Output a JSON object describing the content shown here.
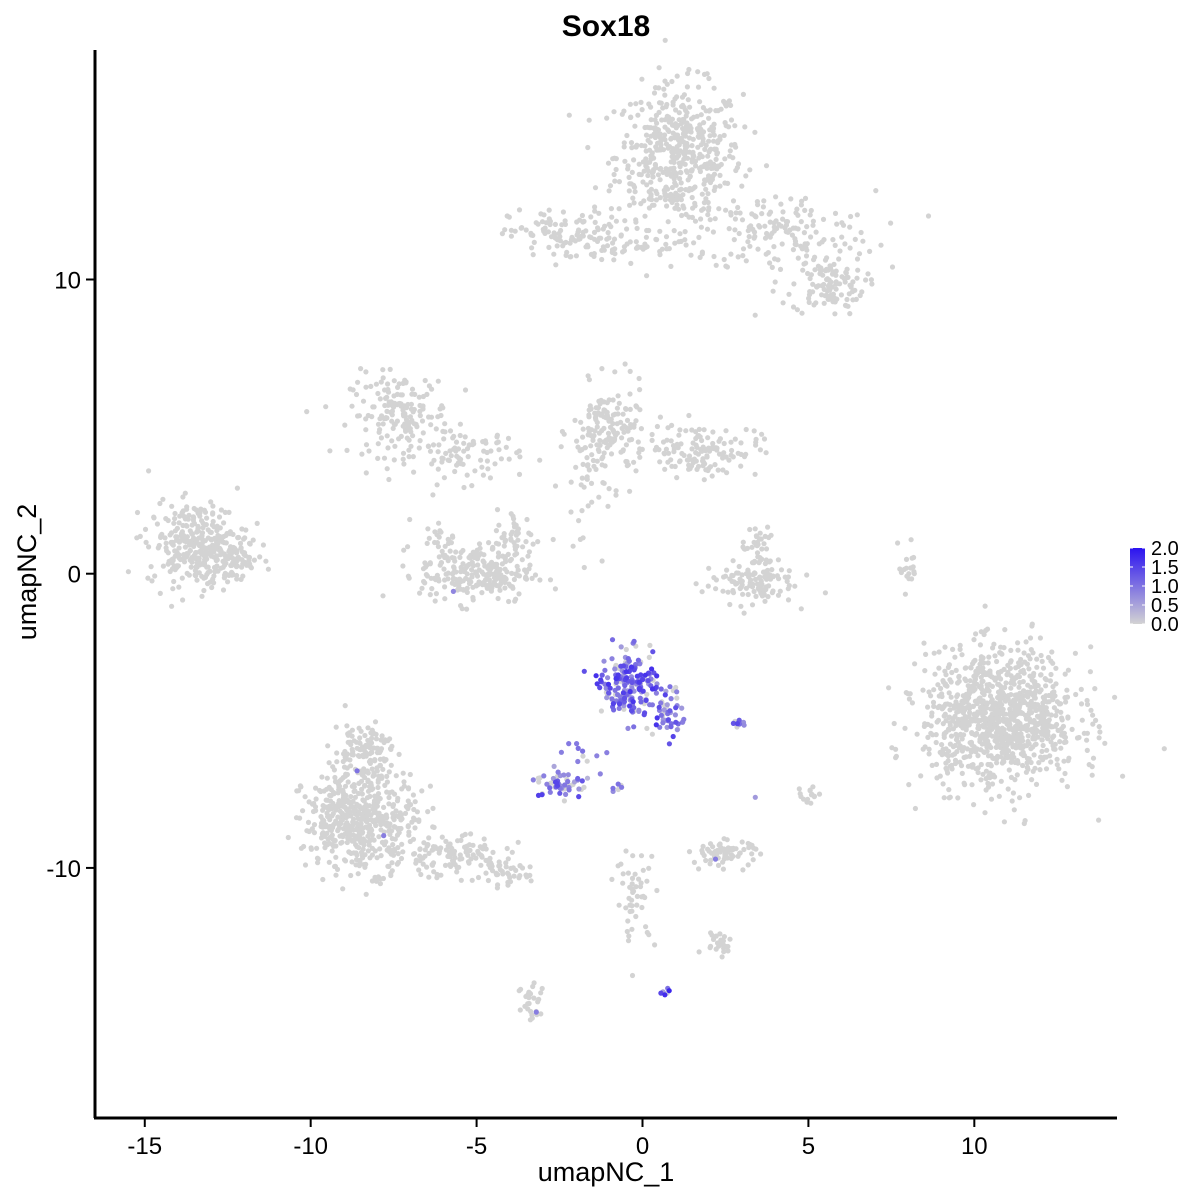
{
  "chart_data": {
    "type": "scatter",
    "title": "Sox18",
    "xlabel": "umapNC_1",
    "ylabel": "umapNC_2",
    "xlim": [
      -16.5,
      14.3
    ],
    "ylim": [
      -18.5,
      17.8
    ],
    "xticks": [
      -15,
      -10,
      -5,
      0,
      5,
      10
    ],
    "xtick_labels": [
      "-15",
      "-10",
      "-5",
      "0",
      "5",
      "10"
    ],
    "yticks": [
      -10,
      0,
      10
    ],
    "ytick_labels": [
      "-10",
      "0",
      "10"
    ],
    "grid": false,
    "color_scale": {
      "low_color": "#d3d3d3",
      "high_color": "#2b13f0",
      "min": 0.0,
      "max": 2.0,
      "ticks": [
        0.0,
        0.5,
        1.0,
        1.5,
        2.0
      ],
      "tick_labels": [
        "0.0",
        "0.5",
        "1.0",
        "1.5",
        "2.0"
      ],
      "legend_position": "right"
    },
    "clusters": [
      {
        "cx": 1.1,
        "cy": 14.2,
        "sx": 0.95,
        "sy": 1.2,
        "n": 520,
        "expr": 0
      },
      {
        "cx": 4.2,
        "cy": 11.6,
        "sx": 1.4,
        "sy": 0.7,
        "n": 150,
        "expr": 0
      },
      {
        "cx": 5.6,
        "cy": 9.8,
        "sx": 0.55,
        "sy": 0.5,
        "n": 110,
        "expr": 0
      },
      {
        "cx": -2.2,
        "cy": 11.5,
        "sx": 0.9,
        "sy": 0.45,
        "n": 120,
        "expr": 0
      },
      {
        "cx": 0.3,
        "cy": 11.1,
        "sx": 1.1,
        "sy": 0.25,
        "n": 40,
        "expr": 0
      },
      {
        "cx": -7.3,
        "cy": 5.4,
        "sx": 0.75,
        "sy": 0.7,
        "n": 170,
        "expr": 0
      },
      {
        "cx": -5.3,
        "cy": 4.0,
        "sx": 0.8,
        "sy": 0.45,
        "n": 80,
        "expr": 0
      },
      {
        "cx": -1.0,
        "cy": 4.8,
        "sx": 0.55,
        "sy": 0.8,
        "n": 150,
        "expr": 0
      },
      {
        "cx": 1.8,
        "cy": 4.2,
        "sx": 0.85,
        "sy": 0.45,
        "n": 130,
        "expr": 0
      },
      {
        "cx": -1.8,
        "cy": 3.0,
        "sx": 0.35,
        "sy": 1.2,
        "n": 40,
        "expr": 0
      },
      {
        "cx": -5.0,
        "cy": 0.0,
        "sx": 0.85,
        "sy": 0.5,
        "n": 230,
        "expr": 0
      },
      {
        "cx": -3.8,
        "cy": 1.2,
        "sx": 0.3,
        "sy": 0.5,
        "n": 40,
        "expr": 0
      },
      {
        "cx": -6.0,
        "cy": 1.0,
        "sx": 0.3,
        "sy": 0.4,
        "n": 30,
        "expr": 0
      },
      {
        "cx": -13.4,
        "cy": 1.0,
        "sx": 0.75,
        "sy": 0.7,
        "n": 320,
        "expr": 0
      },
      {
        "cx": -12.4,
        "cy": 0.3,
        "sx": 0.4,
        "sy": 0.35,
        "n": 50,
        "expr": 0
      },
      {
        "cx": 3.2,
        "cy": -0.3,
        "sx": 0.7,
        "sy": 0.35,
        "n": 110,
        "expr": 0
      },
      {
        "cx": 3.5,
        "cy": 0.8,
        "sx": 0.25,
        "sy": 0.4,
        "n": 40,
        "expr": 0
      },
      {
        "cx": 8.0,
        "cy": 0.2,
        "sx": 0.15,
        "sy": 0.4,
        "n": 18,
        "expr": 0
      },
      {
        "cx": 10.8,
        "cy": -4.9,
        "sx": 1.15,
        "sy": 1.15,
        "n": 1050,
        "expr": 0
      },
      {
        "cx": -8.5,
        "cy": -8.4,
        "sx": 0.85,
        "sy": 0.85,
        "n": 520,
        "expr": 0
      },
      {
        "cx": -8.4,
        "cy": -6.0,
        "sx": 0.45,
        "sy": 0.5,
        "n": 110,
        "expr": 0
      },
      {
        "cx": -5.8,
        "cy": -9.6,
        "sx": 0.85,
        "sy": 0.35,
        "n": 110,
        "expr": 0
      },
      {
        "cx": -4.2,
        "cy": -10.2,
        "sx": 0.4,
        "sy": 0.2,
        "n": 40,
        "expr": 0
      },
      {
        "cx": 2.5,
        "cy": -9.5,
        "sx": 0.5,
        "sy": 0.22,
        "n": 70,
        "expr": 0
      },
      {
        "cx": -0.2,
        "cy": -11.0,
        "sx": 0.3,
        "sy": 0.8,
        "n": 50,
        "expr": 0
      },
      {
        "cx": 2.3,
        "cy": -12.5,
        "sx": 0.25,
        "sy": 0.2,
        "n": 25,
        "expr": 0
      },
      {
        "cx": -3.3,
        "cy": -14.6,
        "sx": 0.22,
        "sy": 0.5,
        "n": 30,
        "expr": 0
      },
      {
        "cx": 5.0,
        "cy": -7.5,
        "sx": 0.2,
        "sy": 0.15,
        "n": 15,
        "expr": 0
      },
      {
        "cx": -0.4,
        "cy": -3.8,
        "sx": 0.45,
        "sy": 0.55,
        "n": 200,
        "expr": 0.65
      },
      {
        "cx": 0.8,
        "cy": -4.8,
        "sx": 0.25,
        "sy": 0.4,
        "n": 45,
        "expr": 0.6
      },
      {
        "cx": -2.4,
        "cy": -7.1,
        "sx": 0.35,
        "sy": 0.22,
        "n": 55,
        "expr": 0.6
      },
      {
        "cx": -1.7,
        "cy": -6.3,
        "sx": 0.25,
        "sy": 0.3,
        "n": 12,
        "expr": 0.4
      },
      {
        "cx": 2.9,
        "cy": -5.1,
        "sx": 0.12,
        "sy": 0.06,
        "n": 10,
        "expr": 0.6
      },
      {
        "cx": -0.8,
        "cy": -7.2,
        "sx": 0.1,
        "sy": 0.1,
        "n": 6,
        "expr": 0.5
      },
      {
        "cx": 0.7,
        "cy": -14.2,
        "sx": 0.08,
        "sy": 0.07,
        "n": 6,
        "expr": 0.7
      }
    ],
    "highlighted_points": [
      {
        "x": -5.7,
        "y": -0.6,
        "value": 0.8
      },
      {
        "x": -8.6,
        "y": -6.7,
        "value": 1.0
      },
      {
        "x": -7.8,
        "y": -8.9,
        "value": 0.9
      },
      {
        "x": 2.2,
        "y": -9.7,
        "value": 0.9
      },
      {
        "x": -3.2,
        "y": -14.9,
        "value": 0.9
      },
      {
        "x": 3.4,
        "y": -7.6,
        "value": 0.6
      }
    ]
  }
}
